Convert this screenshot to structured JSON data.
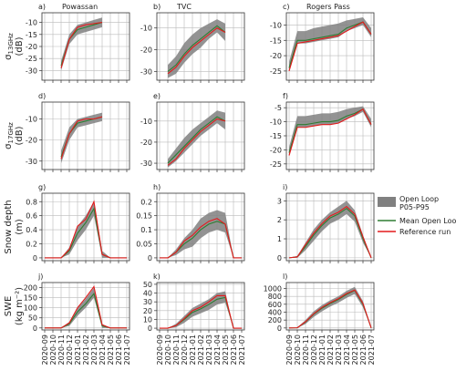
{
  "legend": [
    {
      "name": [
        "Open Loop",
        "P05-P95"
      ],
      "color": "#808080"
    },
    {
      "name": [
        "Mean Open Loop"
      ],
      "color": "#2e7d32"
    },
    {
      "name": [
        "Reference run"
      ],
      "color": "#e41a1c"
    }
  ],
  "chart_data": [
    {
      "type": "line",
      "label": "a)",
      "title": "Powassan",
      "ylabel": {
        "main": "σ",
        "sub": "13GHz",
        "unit": "(dB)"
      },
      "x": [
        "2020-09",
        "2020-10",
        "2020-11",
        "2020-12",
        "2021-01",
        "2021-02",
        "2021-03",
        "2021-04",
        "2021-05",
        "2021-06",
        "2021-07"
      ],
      "ylim": [
        -34,
        -6
      ],
      "yticks": [
        -30,
        -25,
        -20,
        -15,
        -10
      ],
      "band": {
        "lower": [
          null,
          null,
          -30,
          -19,
          -15,
          -14,
          -13,
          -12,
          null,
          null,
          null
        ],
        "upper": [
          null,
          null,
          -26,
          -15,
          -11,
          -10,
          -9,
          -8,
          null,
          null,
          null
        ]
      },
      "mean": [
        null,
        null,
        -28,
        -17,
        -13,
        -12,
        -11,
        -10,
        null,
        null,
        null
      ],
      "reference": [
        null,
        null,
        -29,
        -17,
        -12,
        -11,
        -10.5,
        -10,
        null,
        null,
        null
      ]
    },
    {
      "type": "line",
      "label": "b)",
      "title": "TVC",
      "x": [
        "2020-09",
        "2020-10",
        "2020-11",
        "2020-12",
        "2021-01",
        "2021-02",
        "2021-03",
        "2021-04",
        "2021-05",
        "2021-06",
        "2021-07"
      ],
      "ylim": [
        -34,
        -3
      ],
      "yticks": [
        -30,
        -20,
        -10
      ],
      "band": {
        "lower": [
          null,
          -33,
          -31,
          -26,
          -22,
          -19,
          -15,
          -12,
          -16,
          null,
          null
        ],
        "upper": [
          null,
          -27,
          -23,
          -17,
          -13,
          -10,
          -8,
          -6,
          -8,
          null,
          null
        ]
      },
      "mean": [
        null,
        -30,
        -27,
        -22,
        -18,
        -15,
        -12,
        -9,
        -12,
        null,
        null
      ],
      "reference": [
        null,
        -31,
        -28,
        -23,
        -19,
        -16,
        -13,
        -10,
        -12,
        null,
        null
      ]
    },
    {
      "type": "line",
      "label": "c)",
      "title": "Rogers Pass",
      "x": [
        "2020-09",
        "2020-10",
        "2020-11",
        "2020-12",
        "2021-01",
        "2021-02",
        "2021-03",
        "2021-04",
        "2021-05",
        "2021-06",
        "2021-07"
      ],
      "ylim": [
        -28,
        -6
      ],
      "yticks": [
        -25,
        -20,
        -15,
        -10
      ],
      "band": {
        "lower": [
          -25,
          -16,
          -16,
          -15.5,
          -15,
          -14.5,
          -14,
          -12,
          -11,
          -10,
          -14
        ],
        "upper": [
          -22,
          -12,
          -12,
          -11,
          -10.5,
          -10,
          -9.5,
          -8.5,
          -8,
          -7.5,
          -11
        ]
      },
      "mean": [
        -24,
        -15,
        -15,
        -14.5,
        -14,
        -13.5,
        -13,
        -11,
        -10,
        -9,
        -13
      ],
      "reference": [
        -25,
        -16,
        -15.5,
        -15,
        -14.5,
        -14,
        -13.5,
        -12,
        -10.5,
        -9,
        -13
      ]
    },
    {
      "type": "line",
      "label": "d)",
      "ylabel": {
        "main": "σ",
        "sub": "17GHz",
        "unit": "(dB)"
      },
      "x": [
        "2020-09",
        "2020-10",
        "2020-11",
        "2020-12",
        "2021-01",
        "2021-02",
        "2021-03",
        "2021-04",
        "2021-05",
        "2021-06",
        "2021-07"
      ],
      "ylim": [
        -34,
        -2
      ],
      "yticks": [
        -30,
        -20,
        -10
      ],
      "band": {
        "lower": [
          null,
          null,
          -31,
          -20,
          -14,
          -13,
          -12,
          -11,
          null,
          null,
          null
        ],
        "upper": [
          null,
          null,
          -25,
          -14,
          -10,
          -9,
          -8,
          -7,
          null,
          null,
          null
        ]
      },
      "mean": [
        null,
        null,
        -28,
        -17,
        -12,
        -11,
        -10,
        -9,
        null,
        null,
        null
      ],
      "reference": [
        null,
        null,
        -29,
        -17,
        -11,
        -10,
        -10,
        -9,
        null,
        null,
        null
      ]
    },
    {
      "type": "line",
      "label": "e)",
      "x": [
        "2020-09",
        "2020-10",
        "2020-11",
        "2020-12",
        "2021-01",
        "2021-02",
        "2021-03",
        "2021-04",
        "2021-05",
        "2021-06",
        "2021-07"
      ],
      "ylim": [
        -33,
        -1
      ],
      "yticks": [
        -30,
        -20,
        -10
      ],
      "band": {
        "lower": [
          null,
          -32,
          -29,
          -25,
          -21,
          -17,
          -14,
          -11,
          -14,
          null,
          null
        ],
        "upper": [
          null,
          -28,
          -23,
          -18,
          -14,
          -11,
          -8,
          -5,
          -6,
          null,
          null
        ]
      },
      "mean": [
        null,
        -30,
        -26,
        -22,
        -18,
        -14,
        -11,
        -8,
        -10,
        null,
        null
      ],
      "reference": [
        null,
        -31,
        -28,
        -23,
        -19,
        -15,
        -12,
        -9,
        -10,
        null,
        null
      ]
    },
    {
      "type": "line",
      "label": "f)",
      "x": [
        "2020-09",
        "2020-10",
        "2020-11",
        "2020-12",
        "2021-01",
        "2021-02",
        "2021-03",
        "2021-04",
        "2021-05",
        "2021-06",
        "2021-07"
      ],
      "ylim": [
        -27,
        -3
      ],
      "yticks": [
        -25,
        -20,
        -15,
        -10,
        -5
      ],
      "band": {
        "lower": [
          -22,
          -12,
          -12,
          -11.5,
          -11,
          -11,
          -10.5,
          -9,
          -8,
          -6.5,
          -12
        ],
        "upper": [
          -19,
          -8,
          -8,
          -7.5,
          -7,
          -7,
          -6.5,
          -5.5,
          -5,
          -4.5,
          -9
        ]
      },
      "mean": [
        -21,
        -11,
        -11,
        -10.5,
        -10,
        -10,
        -9.5,
        -8,
        -7,
        -5.5,
        -11
      ],
      "reference": [
        -22,
        -12,
        -12,
        -11.5,
        -11,
        -11,
        -10.5,
        -9,
        -7.5,
        -5.5,
        -11
      ]
    },
    {
      "type": "line",
      "label": "g)",
      "ylabel": {
        "main": "Snow depth",
        "unit": "(m)"
      },
      "x": [
        "2020-09",
        "2020-10",
        "2020-11",
        "2020-12",
        "2021-01",
        "2021-02",
        "2021-03",
        "2021-04",
        "2021-05",
        "2021-06",
        "2021-07"
      ],
      "ylim": [
        -0.04,
        0.92
      ],
      "yticks": [
        0,
        0.2,
        0.4,
        0.6,
        0.8
      ],
      "band": {
        "lower": [
          0,
          0,
          0,
          0.05,
          0.25,
          0.4,
          0.6,
          0,
          0,
          0,
          0
        ],
        "upper": [
          0,
          0,
          0,
          0.15,
          0.45,
          0.6,
          0.8,
          0.1,
          0,
          0,
          0
        ]
      },
      "mean": [
        0,
        0,
        0,
        0.1,
        0.35,
        0.5,
        0.7,
        0.05,
        0,
        0,
        0
      ],
      "reference": [
        0,
        0,
        0,
        0.12,
        0.45,
        0.55,
        0.8,
        0.05,
        0,
        0,
        0
      ]
    },
    {
      "type": "line",
      "label": "h)",
      "x": [
        "2020-09",
        "2020-10",
        "2020-11",
        "2020-12",
        "2021-01",
        "2021-02",
        "2021-03",
        "2021-04",
        "2021-05",
        "2021-06",
        "2021-07"
      ],
      "ylim": [
        -0.01,
        0.23
      ],
      "yticks": [
        0,
        0.05,
        0.1,
        0.15,
        0.2
      ],
      "band": {
        "lower": [
          0,
          0,
          0.01,
          0.03,
          0.04,
          0.07,
          0.09,
          0.1,
          0.09,
          0,
          0
        ],
        "upper": [
          0,
          0,
          0.03,
          0.07,
          0.1,
          0.14,
          0.16,
          0.17,
          0.16,
          0,
          0
        ]
      },
      "mean": [
        0,
        0,
        0.02,
        0.05,
        0.07,
        0.1,
        0.12,
        0.13,
        0.12,
        0,
        0
      ],
      "reference": [
        0,
        0,
        0.02,
        0.06,
        0.08,
        0.11,
        0.13,
        0.14,
        0.12,
        0,
        0
      ]
    },
    {
      "type": "line",
      "label": "i)",
      "x": [
        "2020-09",
        "2020-10",
        "2020-11",
        "2020-12",
        "2021-01",
        "2021-02",
        "2021-03",
        "2021-04",
        "2021-05",
        "2021-06",
        "2021-07"
      ],
      "ylim": [
        -0.15,
        3.4
      ],
      "yticks": [
        0,
        1,
        2,
        3
      ],
      "band": {
        "lower": [
          0,
          0,
          0.4,
          0.9,
          1.4,
          1.8,
          2,
          2.3,
          1.9,
          0.8,
          0
        ],
        "upper": [
          0,
          0.1,
          0.8,
          1.5,
          2,
          2.4,
          2.7,
          3,
          2.5,
          1.2,
          0
        ]
      },
      "mean": [
        0,
        0.05,
        0.6,
        1.2,
        1.7,
        2.1,
        2.3,
        2.6,
        2.2,
        1,
        0
      ],
      "reference": [
        0,
        0.05,
        0.7,
        1.3,
        1.8,
        2.2,
        2.4,
        2.7,
        2.3,
        1.1,
        0
      ]
    },
    {
      "type": "line",
      "label": "j)",
      "ylabel": {
        "main": "SWE",
        "unit": "(kg m⁻²)"
      },
      "x": [
        "2020-09",
        "2020-10",
        "2020-11",
        "2020-12",
        "2021-01",
        "2021-02",
        "2021-03",
        "2021-04",
        "2021-05",
        "2021-06",
        "2021-07"
      ],
      "ylim": [
        -10,
        225
      ],
      "yticks": [
        0,
        50,
        100,
        150,
        200
      ],
      "band": {
        "lower": [
          0,
          0,
          0,
          10,
          60,
          100,
          150,
          0,
          0,
          0,
          0
        ],
        "upper": [
          0,
          0,
          0,
          30,
          100,
          145,
          200,
          20,
          0,
          0,
          0
        ]
      },
      "mean": [
        0,
        0,
        0,
        20,
        80,
        120,
        170,
        10,
        0,
        0,
        0
      ],
      "reference": [
        0,
        0,
        0,
        25,
        100,
        150,
        205,
        15,
        0,
        0,
        0
      ]
    },
    {
      "type": "line",
      "label": "k)",
      "x": [
        "2020-09",
        "2020-10",
        "2020-11",
        "2020-12",
        "2021-01",
        "2021-02",
        "2021-03",
        "2021-04",
        "2021-05",
        "2021-06",
        "2021-07"
      ],
      "ylim": [
        -2,
        52
      ],
      "yticks": [
        0,
        10,
        20,
        30,
        40,
        50
      ],
      "band": {
        "lower": [
          0,
          0,
          1,
          6,
          13,
          17,
          21,
          27,
          29,
          0,
          0
        ],
        "upper": [
          0,
          0,
          5,
          14,
          23,
          28,
          33,
          40,
          42,
          0,
          0
        ]
      },
      "mean": [
        0,
        0,
        3,
        10,
        18,
        22,
        27,
        33,
        35,
        0,
        0
      ],
      "reference": [
        0,
        0,
        3,
        11,
        20,
        24,
        30,
        37,
        37,
        0,
        0
      ]
    },
    {
      "type": "line",
      "label": "l)",
      "x": [
        "2020-09",
        "2020-10",
        "2020-11",
        "2020-12",
        "2021-01",
        "2021-02",
        "2021-03",
        "2021-04",
        "2021-05",
        "2021-06",
        "2021-07"
      ],
      "ylim": [
        -50,
        1150
      ],
      "yticks": [
        0,
        200,
        400,
        600,
        800,
        1000
      ],
      "band": {
        "lower": [
          0,
          0,
          100,
          280,
          420,
          540,
          640,
          760,
          860,
          520,
          0
        ],
        "upper": [
          0,
          10,
          200,
          420,
          580,
          700,
          800,
          940,
          1040,
          680,
          0
        ]
      },
      "mean": [
        0,
        5,
        150,
        350,
        500,
        620,
        720,
        850,
        950,
        600,
        0
      ],
      "reference": [
        0,
        5,
        160,
        360,
        520,
        640,
        740,
        870,
        960,
        620,
        0
      ]
    }
  ]
}
